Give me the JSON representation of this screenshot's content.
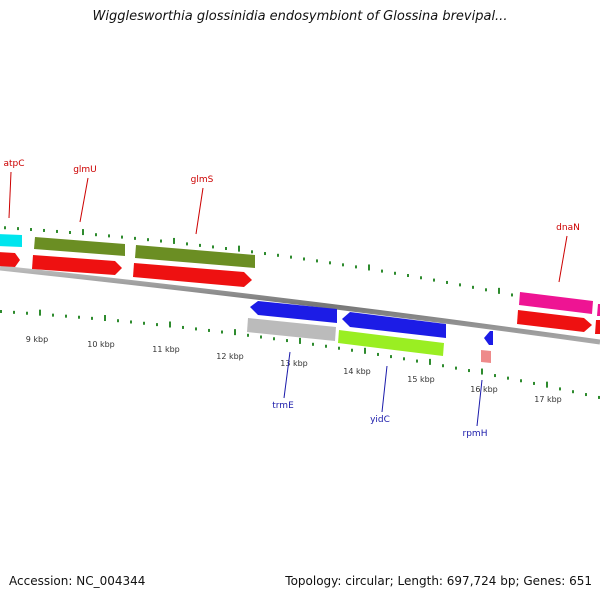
{
  "title": "Wigglesworthia glossinidia endosymbiont of Glossina brevipal...",
  "footer": {
    "accession": "Accession: NC_004344",
    "summary": "Topology: circular; Length: 697,724 bp; Genes: 651"
  },
  "colors": {
    "label_forward": "#cc0000",
    "label_reverse": "#1a1aaa",
    "tick": "#2e8b2e",
    "backbone": "#888888",
    "cds_forward": "#ee1111",
    "cds_reverse": "#1c1ce6"
  },
  "scale_ticks": [
    "9 kbp",
    "10 kbp",
    "11 kbp",
    "12 kbp",
    "13 kbp",
    "14 kbp",
    "15 kbp",
    "16 kbp",
    "17 kbp"
  ],
  "gene_labels": {
    "forward": [
      "atpC",
      "glmU",
      "glmS",
      "dnaN"
    ],
    "reverse": [
      "trmE",
      "yidC",
      "rpmH"
    ]
  },
  "feature_colors": {
    "atpC": "#00e5ee",
    "glmU": "#6b8e23",
    "glmS": "#6b8e23",
    "dnaN": "#ee1493",
    "trmE": "#bbbbbb",
    "yidC": "#9aee22",
    "rpmH": "#ee8a8a"
  }
}
